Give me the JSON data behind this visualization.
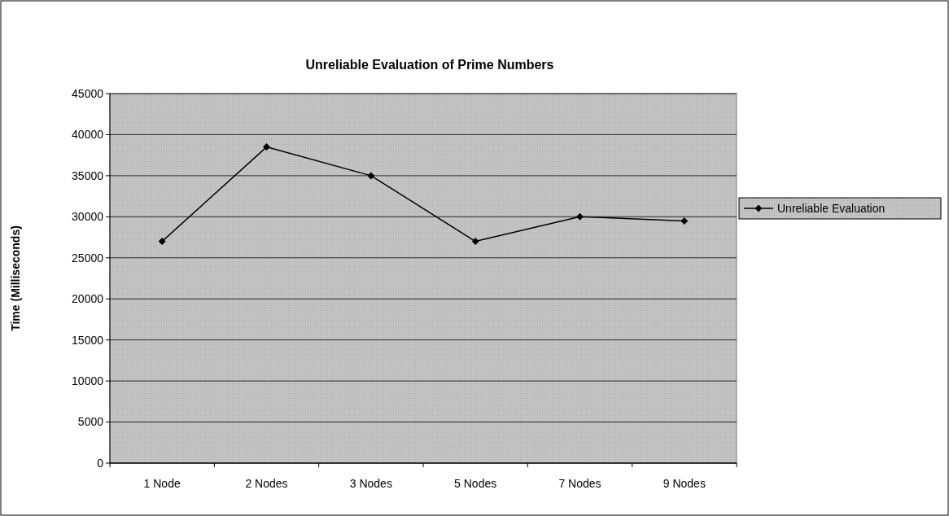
{
  "chart_data": {
    "type": "line",
    "title": "Unreliable Evaluation of Prime Numbers",
    "ylabel": "Time (Milliseconds)",
    "categories": [
      "1 Node",
      "2 Nodes",
      "3 Nodes",
      "5 Nodes",
      "7 Nodes",
      "9 Nodes"
    ],
    "series": [
      {
        "name": "Unreliable Evaluation",
        "color": "#000000",
        "values": [
          27000,
          38500,
          35000,
          27000,
          30000,
          29500
        ]
      }
    ],
    "ylim": [
      0,
      45000
    ],
    "yticks": [
      0,
      5000,
      10000,
      15000,
      20000,
      25000,
      30000,
      35000,
      40000,
      45000
    ],
    "grid": "y",
    "legend": "right",
    "marker": "diamond",
    "line_style": "solid"
  }
}
